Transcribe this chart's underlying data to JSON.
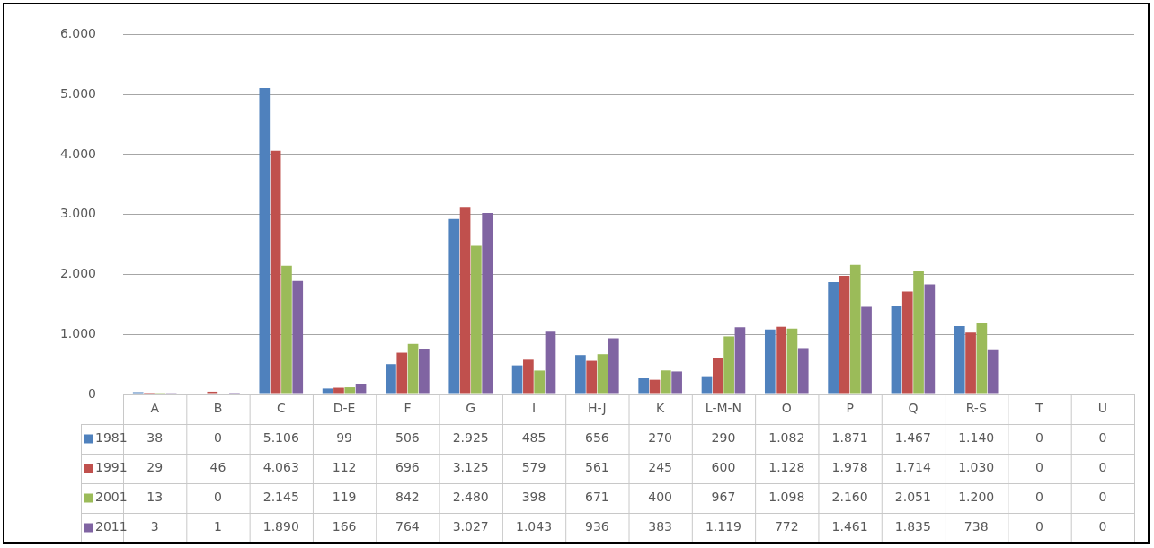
{
  "chart_data": {
    "type": "bar",
    "categories": [
      "A",
      "B",
      "C",
      "D-E",
      "F",
      "G",
      "I",
      "H-J",
      "K",
      "L-M-N",
      "O",
      "P",
      "Q",
      "R-S",
      "T",
      "U"
    ],
    "series": [
      {
        "name": "1981",
        "color": "#4f81bd",
        "values": [
          38,
          0,
          5106,
          99,
          506,
          2925,
          485,
          656,
          270,
          290,
          1082,
          1871,
          1467,
          1140,
          0,
          0
        ],
        "value_labels": [
          "38",
          "0",
          "5.106",
          "99",
          "506",
          "2.925",
          "485",
          "656",
          "270",
          "290",
          "1.082",
          "1.871",
          "1.467",
          "1.140",
          "0",
          "0"
        ]
      },
      {
        "name": "1991",
        "color": "#c0504d",
        "values": [
          29,
          46,
          4063,
          112,
          696,
          3125,
          579,
          561,
          245,
          600,
          1128,
          1978,
          1714,
          1030,
          0,
          0
        ],
        "value_labels": [
          "29",
          "46",
          "4.063",
          "112",
          "696",
          "3.125",
          "579",
          "561",
          "245",
          "600",
          "1.128",
          "1.978",
          "1.714",
          "1.030",
          "0",
          "0"
        ]
      },
      {
        "name": "2001",
        "color": "#9bbb59",
        "values": [
          13,
          0,
          2145,
          119,
          842,
          2480,
          398,
          671,
          400,
          967,
          1098,
          2160,
          2051,
          1200,
          0,
          0
        ],
        "value_labels": [
          "13",
          "0",
          "2.145",
          "119",
          "842",
          "2.480",
          "398",
          "671",
          "400",
          "967",
          "1.098",
          "2.160",
          "2.051",
          "1.200",
          "0",
          "0"
        ]
      },
      {
        "name": "2011",
        "color": "#8064a2",
        "values": [
          3,
          1,
          1890,
          166,
          764,
          3027,
          1043,
          936,
          383,
          1119,
          772,
          1461,
          1835,
          738,
          0,
          0
        ],
        "value_labels": [
          "3",
          "1",
          "1.890",
          "166",
          "764",
          "3.027",
          "1.043",
          "936",
          "383",
          "1.119",
          "772",
          "1.461",
          "1.835",
          "738",
          "0",
          "0"
        ]
      }
    ],
    "ylim": [
      0,
      6000
    ],
    "yticks": [
      {
        "value": 0,
        "label": "0"
      },
      {
        "value": 1000,
        "label": "1.000"
      },
      {
        "value": 2000,
        "label": "2.000"
      },
      {
        "value": 3000,
        "label": "3.000"
      },
      {
        "value": 4000,
        "label": "4.000"
      },
      {
        "value": 5000,
        "label": "5.000"
      },
      {
        "value": 6000,
        "label": "6.000"
      }
    ],
    "grid": "y",
    "legend": "bottom"
  }
}
